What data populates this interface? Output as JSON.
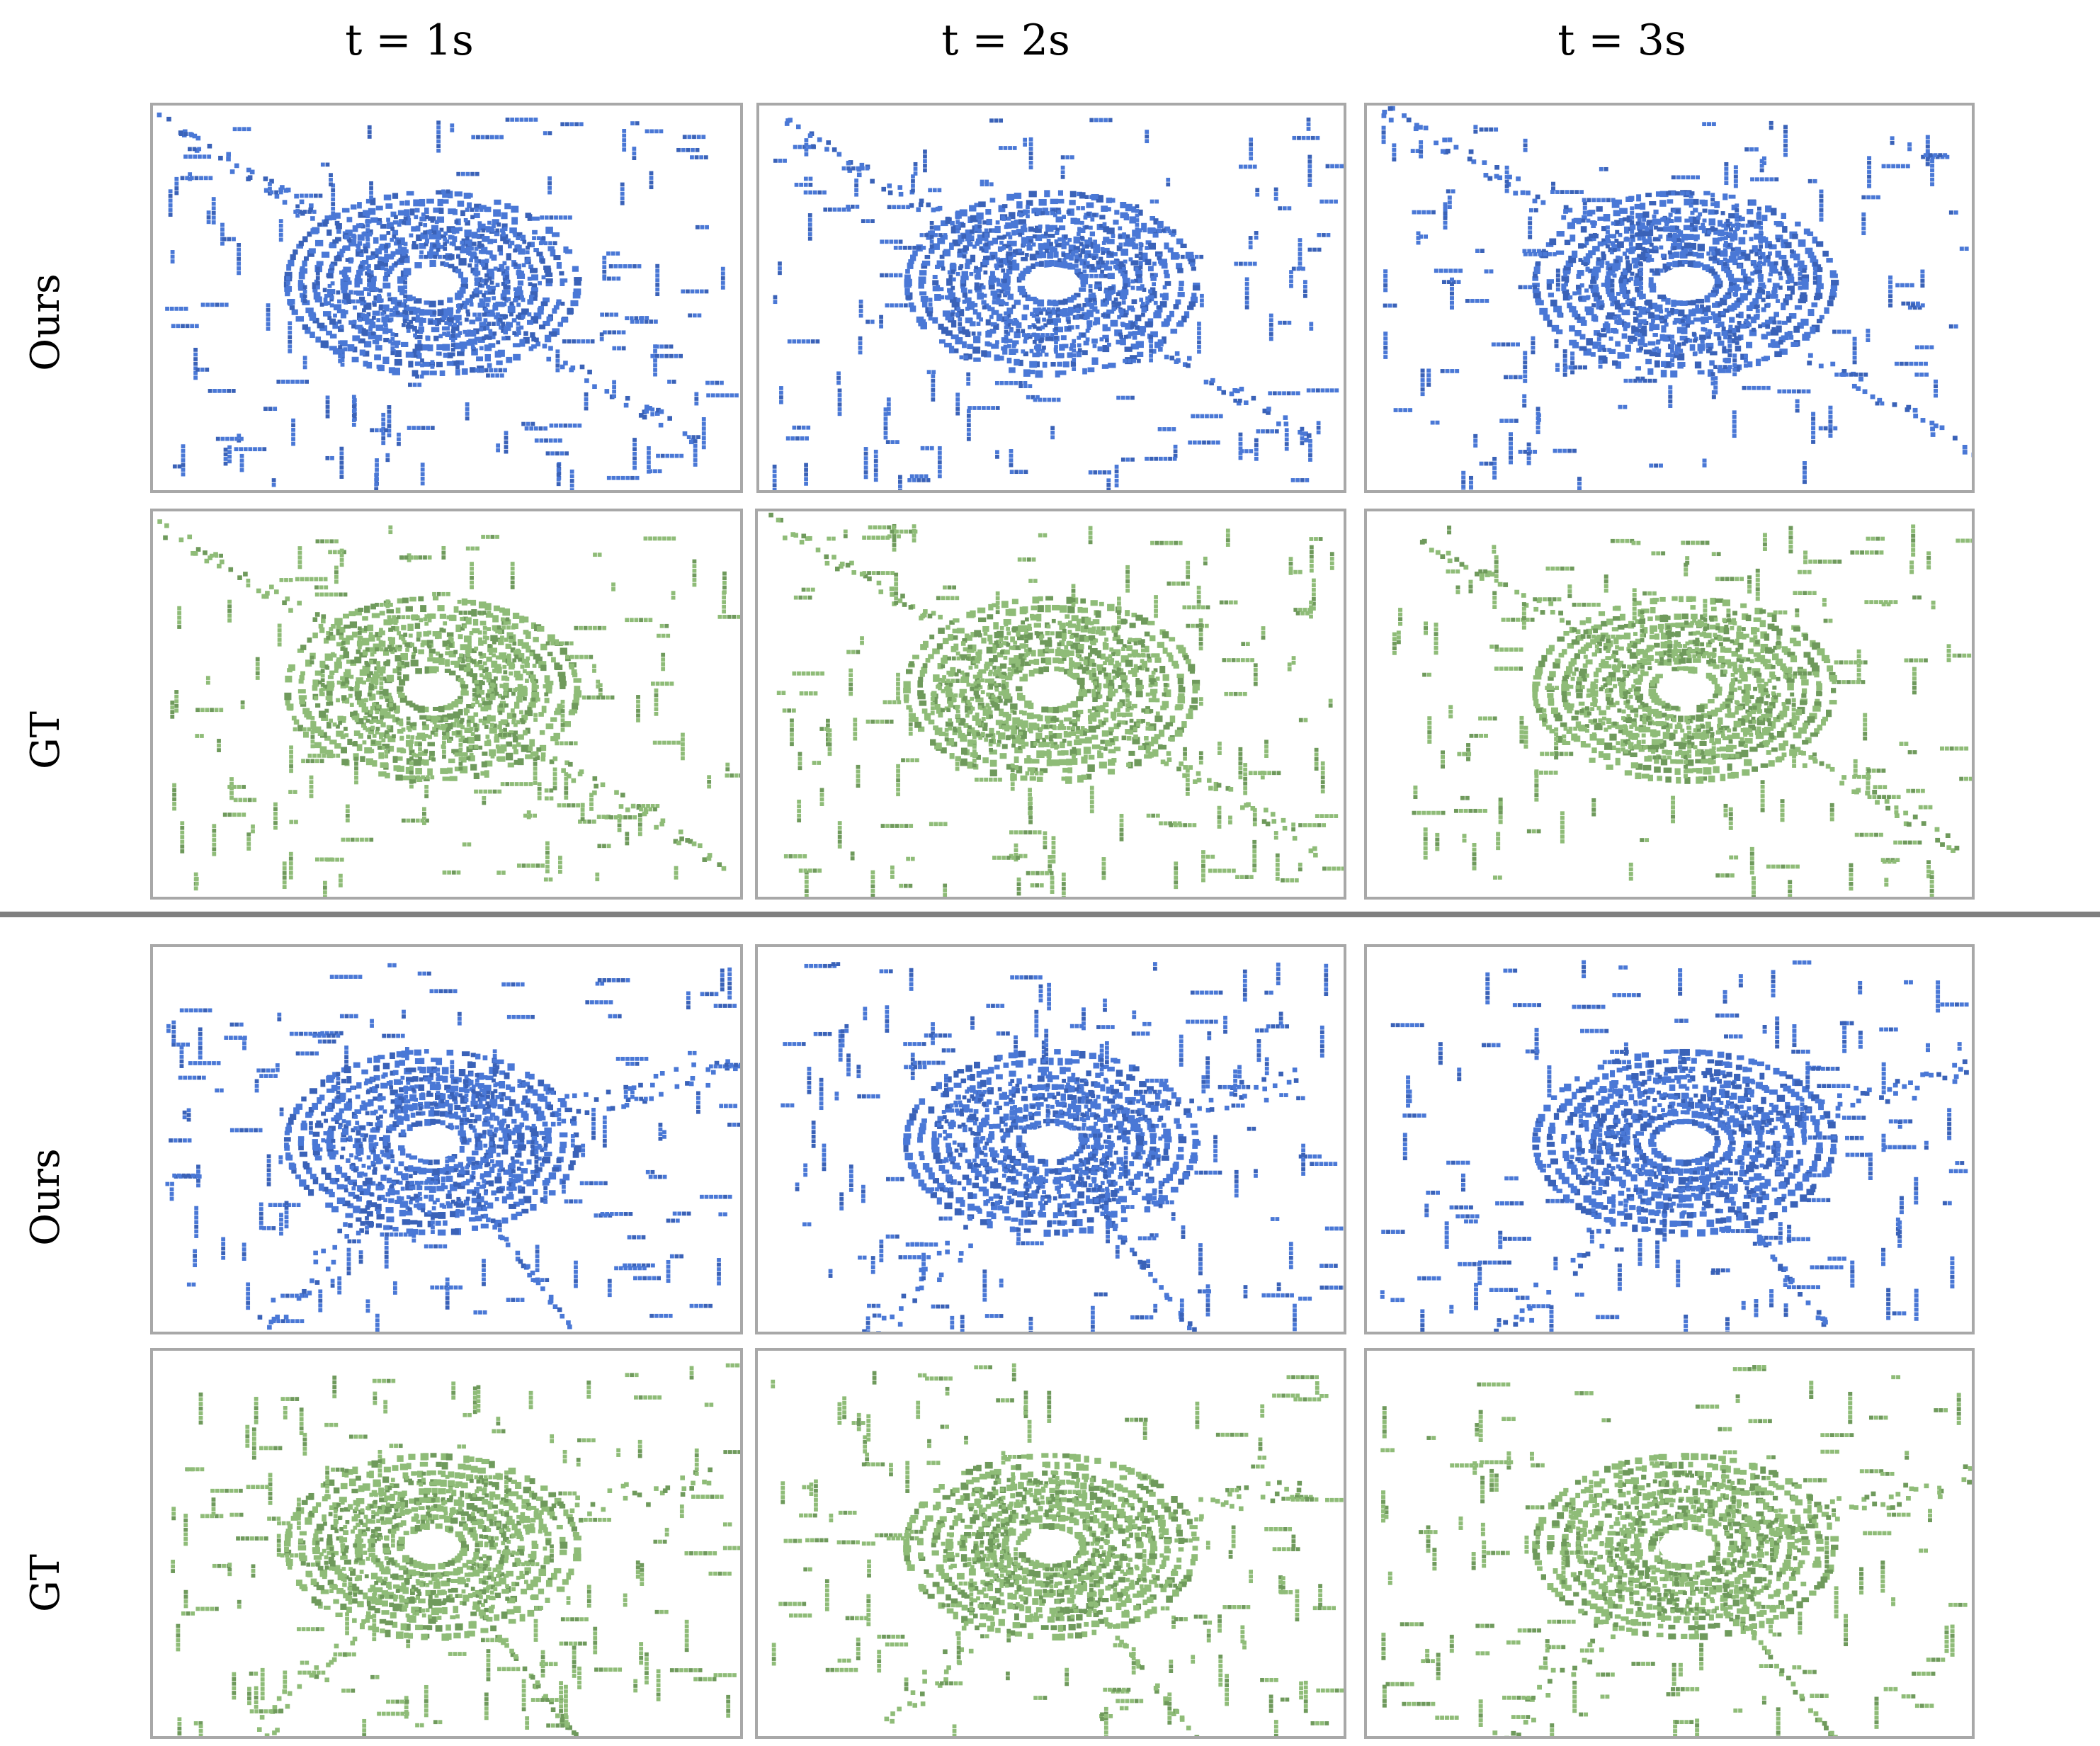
{
  "columns": [
    "t = 1s",
    "t = 2s",
    "t = 3s"
  ],
  "groups": [
    {
      "rows": [
        {
          "label": "Ours",
          "kind": "prediction"
        },
        {
          "label": "GT",
          "kind": "ground-truth"
        }
      ]
    },
    {
      "rows": [
        {
          "label": "Ours",
          "kind": "prediction"
        },
        {
          "label": "GT",
          "kind": "ground-truth"
        }
      ]
    }
  ],
  "colors": {
    "prediction": "#4a78d6",
    "prediction_dark": "#3a62b8",
    "ground_truth": "#8fbc78",
    "ground_truth_dark": "#6f9a5c",
    "panel_border": "#a8a8a8",
    "divider": "#808080"
  }
}
